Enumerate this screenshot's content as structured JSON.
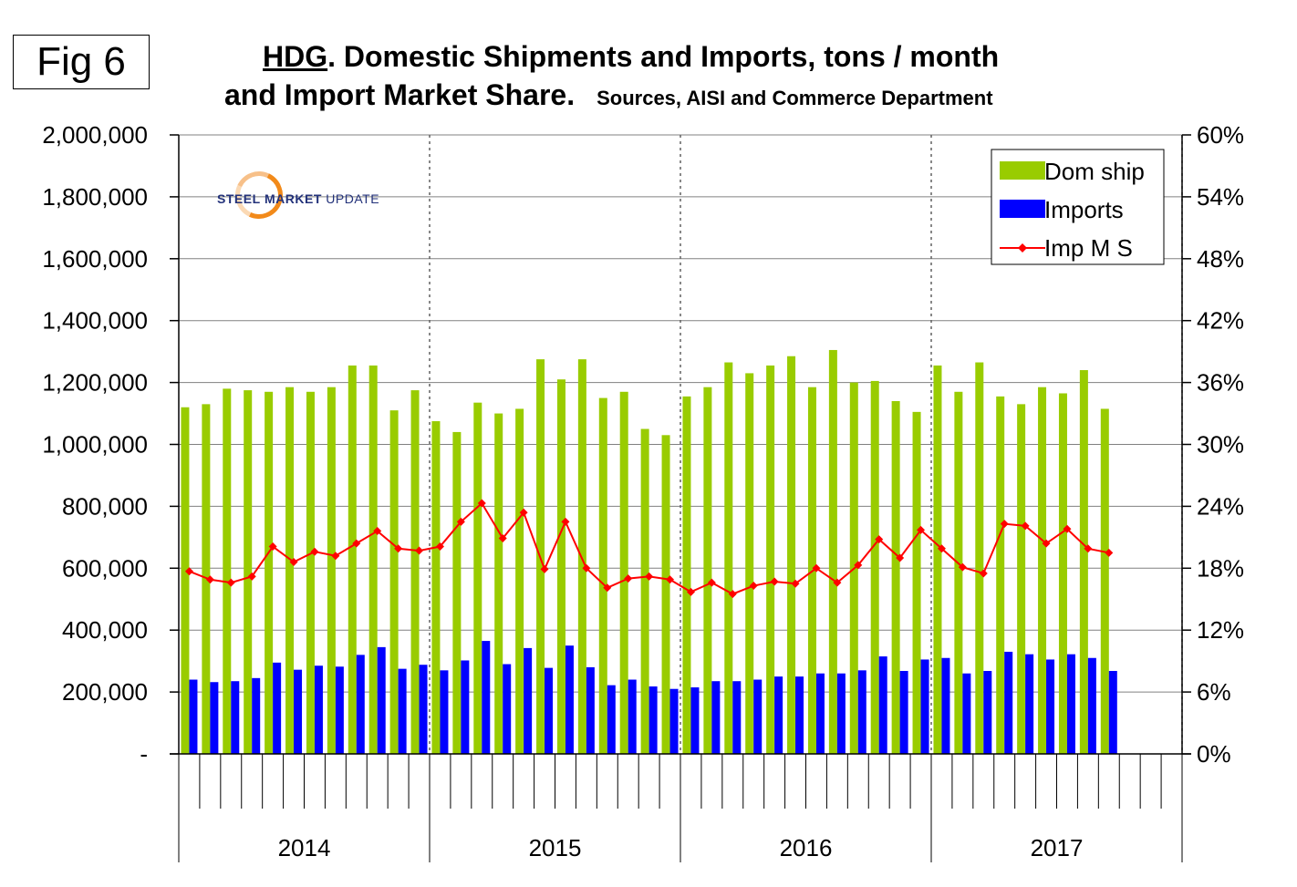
{
  "figure": {
    "label": "Fig 6"
  },
  "titles": {
    "line1_underlined": "HDG",
    "line1_rest": ". Domestic Shipments and Imports, tons / month",
    "line2": "and Import Market Share.",
    "sources": "Sources, AISI and Commerce Department"
  },
  "logo": {
    "word1": "STEEL",
    "word2": "MARKET",
    "word3": "UPDATE"
  },
  "colors": {
    "dom": "#99cc00",
    "imp": "#0000ff",
    "ms": "#ff0000",
    "grid": "#000000"
  },
  "chart_data": {
    "type": "bar",
    "title": "HDG. Domestic Shipments and Imports, tons / month and Import Market Share.",
    "years": [
      "2014",
      "2015",
      "2016",
      "2017"
    ],
    "months_per_year": 12,
    "y_left": {
      "min": 0,
      "max": 2000000,
      "ticks": [
        "-",
        "200,000",
        "400,000",
        "600,000",
        "800,000",
        "1,000,000",
        "1,200,000",
        "1,400,000",
        "1,600,000",
        "1,800,000",
        "2,000,000"
      ]
    },
    "y_right": {
      "min": 0,
      "max": 60,
      "ticks": [
        "0%",
        "6%",
        "12%",
        "18%",
        "24%",
        "30%",
        "36%",
        "42%",
        "48%",
        "54%",
        "60%"
      ]
    },
    "legend": {
      "position": "top-right",
      "entries": [
        "Dom ship",
        "Imports",
        "Imp M S"
      ]
    },
    "grid": true,
    "series": [
      {
        "name": "Dom ship",
        "kind": "bar",
        "values": [
          1120000,
          1130000,
          1180000,
          1175000,
          1170000,
          1185000,
          1170000,
          1185000,
          1255000,
          1255000,
          1110000,
          1175000,
          1075000,
          1040000,
          1135000,
          1100000,
          1115000,
          1275000,
          1210000,
          1275000,
          1150000,
          1170000,
          1050000,
          1030000,
          1155000,
          1185000,
          1265000,
          1230000,
          1255000,
          1285000,
          1185000,
          1305000,
          1200000,
          1205000,
          1140000,
          1105000,
          1255000,
          1170000,
          1265000,
          1155000,
          1130000,
          1185000,
          1165000,
          1240000,
          1115000
        ]
      },
      {
        "name": "Imports",
        "kind": "bar",
        "values": [
          240000,
          232000,
          235000,
          245000,
          295000,
          272000,
          285000,
          282000,
          320000,
          345000,
          275000,
          288000,
          270000,
          302000,
          365000,
          290000,
          342000,
          278000,
          350000,
          280000,
          222000,
          240000,
          218000,
          210000,
          215000,
          235000,
          235000,
          240000,
          250000,
          250000,
          260000,
          260000,
          270000,
          315000,
          268000,
          305000,
          310000,
          260000,
          268000,
          330000,
          322000,
          305000,
          322000,
          310000,
          268000
        ]
      },
      {
        "name": "Imp M S",
        "kind": "line",
        "unit": "%",
        "values": [
          17.7,
          16.9,
          16.6,
          17.2,
          20.1,
          18.6,
          19.6,
          19.2,
          20.4,
          21.6,
          19.9,
          19.7,
          20.1,
          22.5,
          24.3,
          20.9,
          23.4,
          17.9,
          22.5,
          18.0,
          16.1,
          17.0,
          17.2,
          16.9,
          15.7,
          16.6,
          15.5,
          16.3,
          16.7,
          16.5,
          18.0,
          16.6,
          18.3,
          20.8,
          19.0,
          21.7,
          19.9,
          18.1,
          17.5,
          22.3,
          22.1,
          20.4,
          21.8,
          19.9,
          19.5
        ]
      }
    ]
  }
}
